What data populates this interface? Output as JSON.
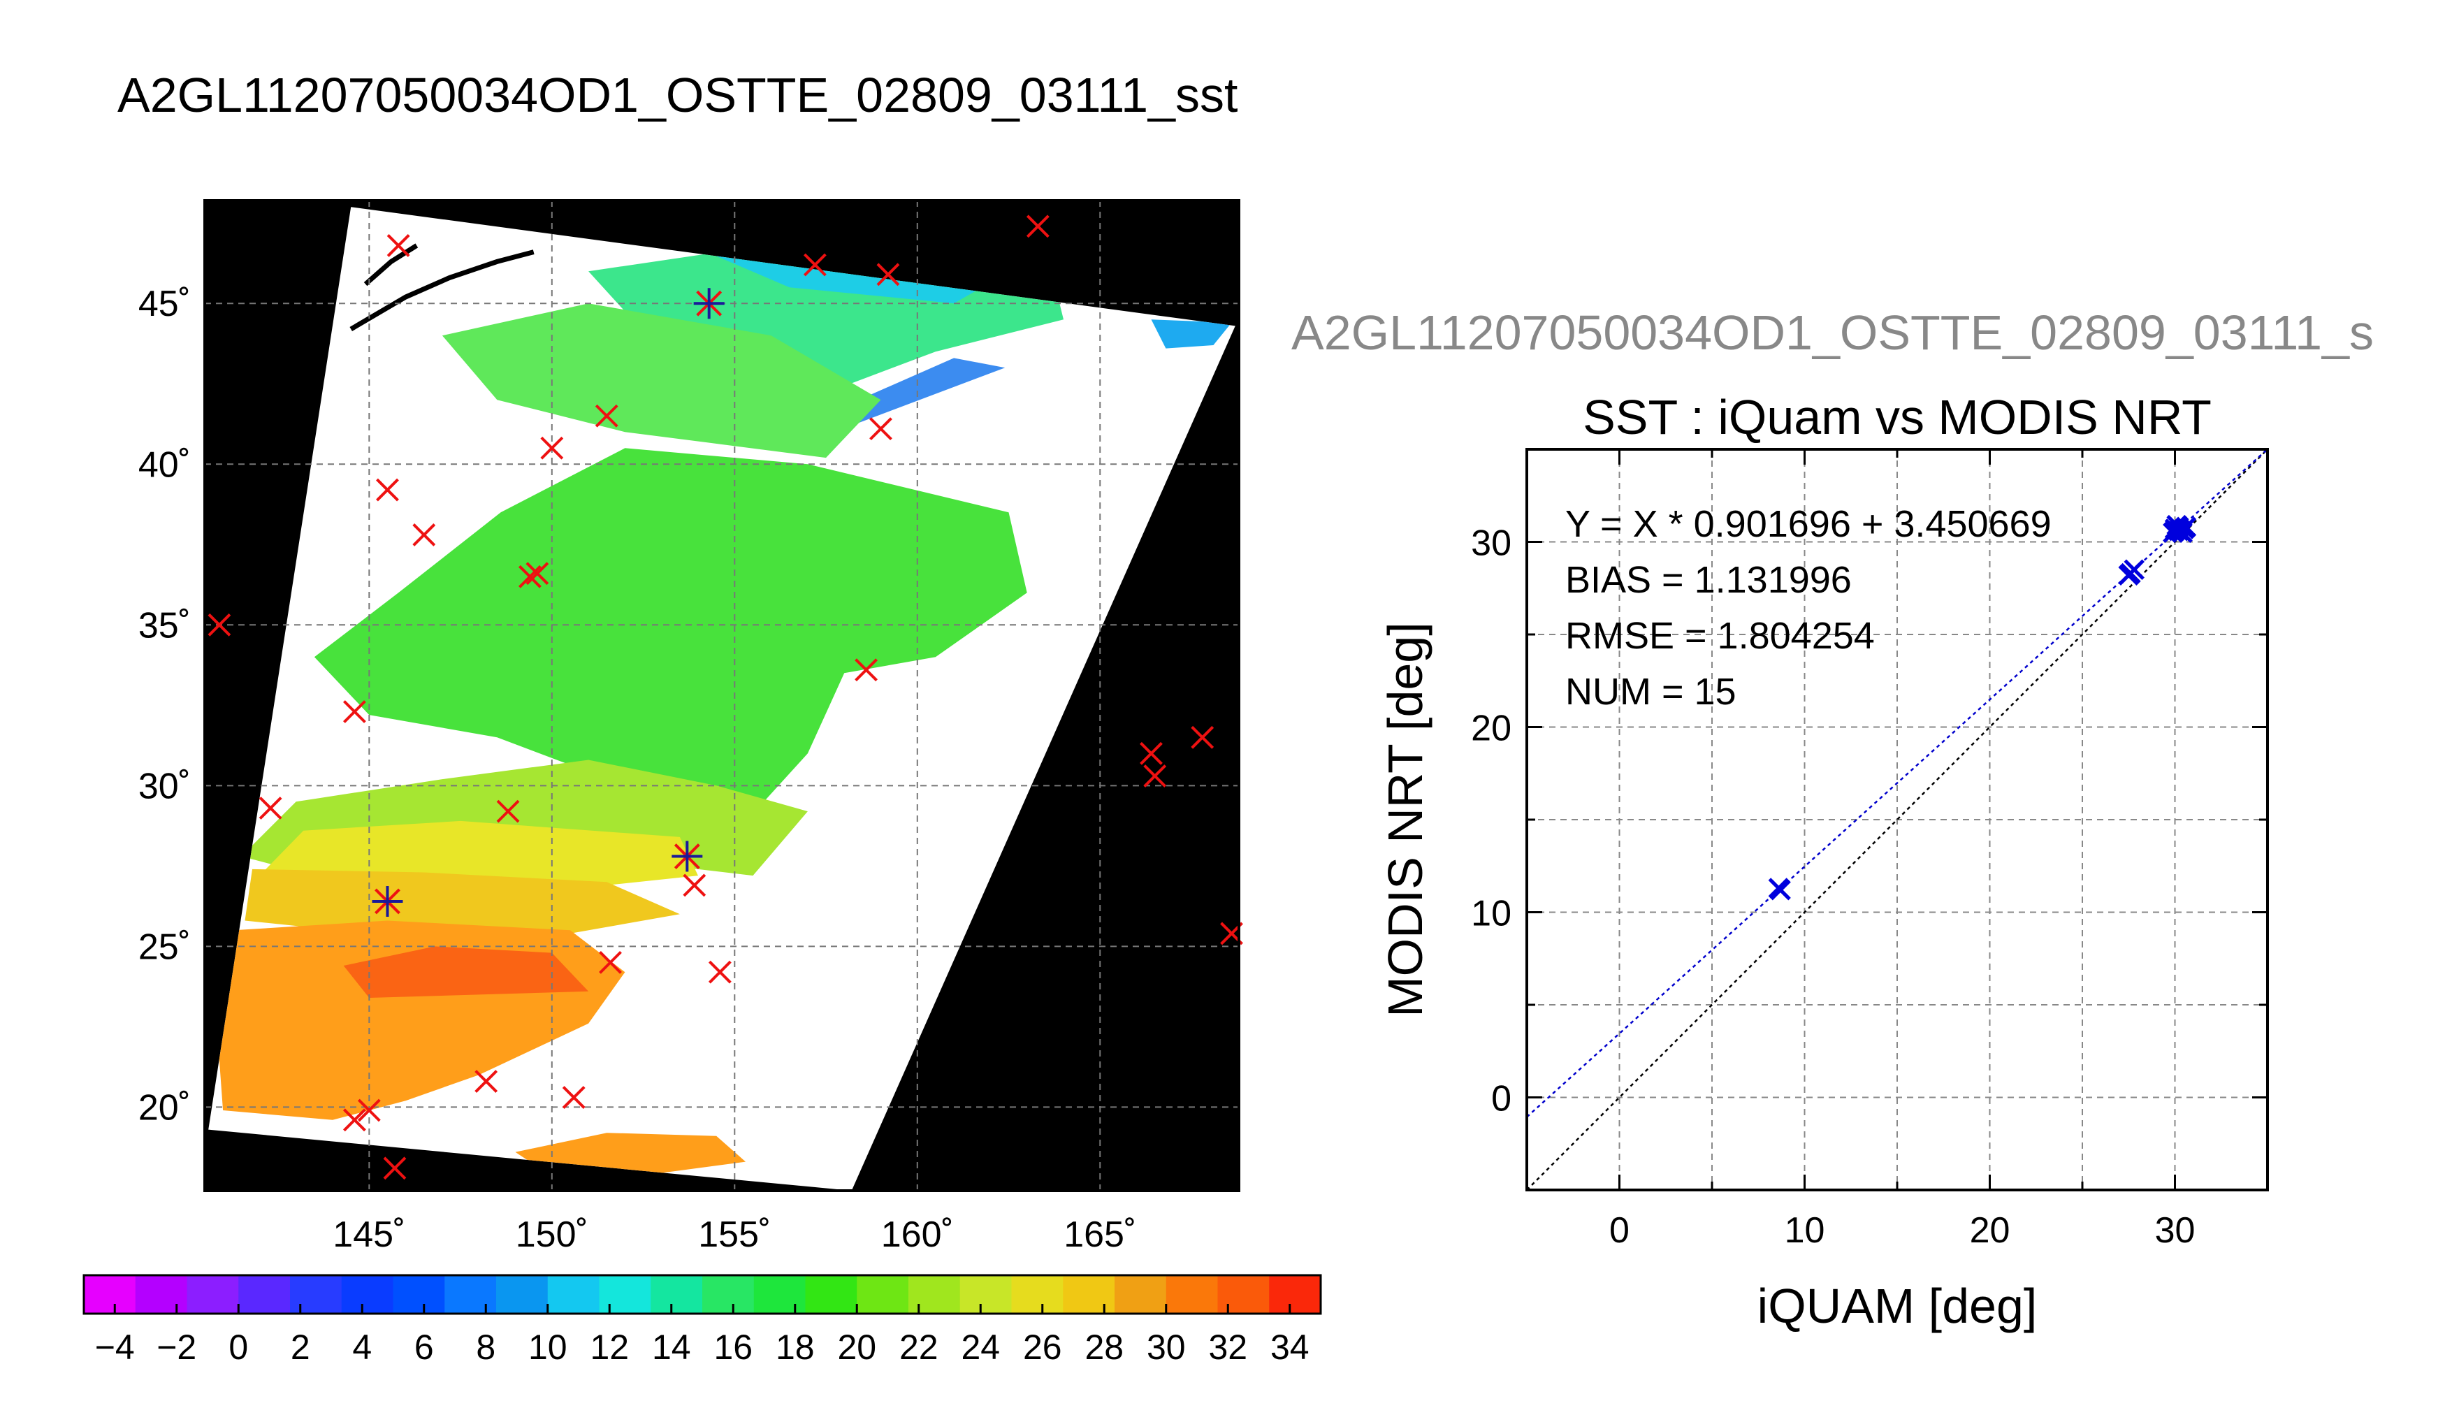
{
  "figure_title": "A2GL11207050034OD1_OSTTE_02809_03111_sst",
  "chart_data": [
    {
      "type": "map",
      "title": "A2GL11207050034OD1_OSTTE_02809_03111_sst",
      "lon_ticks": [
        145,
        150,
        155,
        160,
        165
      ],
      "lat_ticks": [
        20,
        25,
        30,
        35,
        40,
        45
      ],
      "lon_tick_labels": [
        "145˚",
        "150˚",
        "155˚",
        "160˚",
        "165˚"
      ],
      "lat_tick_labels": [
        "20˚",
        "25˚",
        "30˚",
        "35˚",
        "40˚",
        "45˚"
      ],
      "lon_range": [
        140.5,
        168.8
      ],
      "lat_range": [
        17.4,
        48.2
      ],
      "grid": true,
      "swath_corners": [
        [
          144.5,
          48.0
        ],
        [
          168.7,
          44.3
        ],
        [
          158.2,
          17.4
        ],
        [
          140.6,
          19.3
        ]
      ],
      "regions": [
        {
          "label": "green (cyan) NE",
          "color": "#3ce68c",
          "points": [
            [
              151,
              46
            ],
            [
              157,
              47
            ],
            [
              163.5,
              46.8
            ],
            [
              164,
              44.5
            ],
            [
              160.5,
              43.5
            ],
            [
              157,
              42
            ],
            [
              153,
              43.5
            ]
          ]
        },
        {
          "label": "cyan core",
          "color": "#1ecde6",
          "points": [
            [
              153,
              47.2
            ],
            [
              158,
              47.2
            ],
            [
              163,
              46.3
            ],
            [
              161,
              45
            ],
            [
              156.5,
              45.5
            ]
          ]
        },
        {
          "label": "cyan edge",
          "color": "#1eaaf0",
          "points": [
            [
              166.4,
              44.5
            ],
            [
              168.6,
              44.4
            ],
            [
              168.1,
              43.7
            ],
            [
              166.8,
              43.6
            ]
          ]
        },
        {
          "label": "blue strip",
          "color": "#3c8cf0",
          "points": [
            [
              157.6,
              41.6
            ],
            [
              161,
              43.3
            ],
            [
              162.4,
              43
            ],
            [
              158.2,
              41.2
            ]
          ]
        },
        {
          "label": "green central",
          "color": "#48e23c",
          "points": [
            [
              145.8,
              36
            ],
            [
              148.6,
              38.5
            ],
            [
              152,
              40.5
            ],
            [
              157,
              40
            ],
            [
              162.5,
              38.5
            ],
            [
              163,
              36
            ],
            [
              160.5,
              34
            ],
            [
              158,
              33.5
            ],
            [
              157,
              31
            ],
            [
              155,
              28.5
            ],
            [
              152,
              30
            ],
            [
              148.5,
              31.5
            ],
            [
              145,
              32.2
            ],
            [
              143.5,
              34
            ]
          ]
        },
        {
          "label": "green north",
          "color": "#5fe85a",
          "points": [
            [
              147,
              44
            ],
            [
              151,
              45
            ],
            [
              156,
              44
            ],
            [
              159,
              42
            ],
            [
              157.5,
              40.2
            ],
            [
              152,
              41
            ],
            [
              148.5,
              42
            ]
          ]
        },
        {
          "label": "yellow-green band",
          "color": "#a6e632",
          "points": [
            [
              143,
              29.5
            ],
            [
              147,
              30.2
            ],
            [
              151,
              30.8
            ],
            [
              154.5,
              30
            ],
            [
              157,
              29.2
            ],
            [
              155.5,
              27.2
            ],
            [
              151,
              27.8
            ],
            [
              147,
              27.6
            ],
            [
              143.5,
              27.2
            ],
            [
              141.5,
              27.8
            ]
          ]
        },
        {
          "label": "yellow",
          "color": "#e8e628",
          "points": [
            [
              143.2,
              28.6
            ],
            [
              147.5,
              28.9
            ],
            [
              153.5,
              28.4
            ],
            [
              154,
              27.2
            ],
            [
              149,
              26.6
            ],
            [
              144.5,
              26.8
            ],
            [
              142,
              27.2
            ]
          ]
        },
        {
          "label": "orange-yellow",
          "color": "#f0c81e",
          "points": [
            [
              141.8,
              27.4
            ],
            [
              146.5,
              27.3
            ],
            [
              151.5,
              27
            ],
            [
              153.5,
              26
            ],
            [
              149.5,
              25.2
            ],
            [
              145,
              25.4
            ],
            [
              141.6,
              25.8
            ]
          ]
        },
        {
          "label": "orange",
          "color": "#ff9e1a",
          "points": [
            [
              141.3,
              25.5
            ],
            [
              145.5,
              25.8
            ],
            [
              150.5,
              25.5
            ],
            [
              152,
              24.2
            ],
            [
              151,
              22.6
            ],
            [
              148,
              21
            ],
            [
              146,
              20.2
            ],
            [
              144,
              19.6
            ],
            [
              141,
              19.9
            ],
            [
              140.8,
              23
            ]
          ]
        },
        {
          "label": "dark orange",
          "color": "#fa6414",
          "points": [
            [
              144.3,
              24.4
            ],
            [
              146.8,
              25
            ],
            [
              150,
              24.8
            ],
            [
              151,
              23.6
            ],
            [
              148,
              23.5
            ],
            [
              145,
              23.4
            ]
          ]
        },
        {
          "label": "orange patch south",
          "color": "#ff9e1a",
          "points": [
            [
              149,
              18.6
            ],
            [
              151.5,
              19.2
            ],
            [
              154.5,
              19.1
            ],
            [
              155.3,
              18.3
            ],
            [
              152,
              17.8
            ],
            [
              149.8,
              18
            ]
          ]
        }
      ],
      "coastlines": [
        [
          [
            144.5,
            44.2
          ],
          [
            146,
            45.2
          ],
          [
            147.2,
            45.8
          ],
          [
            148.5,
            46.3
          ],
          [
            149.5,
            46.6
          ]
        ],
        [
          [
            144.9,
            45.6
          ],
          [
            145.6,
            46.3
          ],
          [
            146.3,
            46.8
          ]
        ]
      ],
      "buoy_markers_red": [
        [
          145.8,
          46.8
        ],
        [
          157.2,
          46.2
        ],
        [
          159.2,
          45.9
        ],
        [
          163.3,
          47.4
        ],
        [
          151.5,
          41.5
        ],
        [
          150.0,
          40.5
        ],
        [
          159.0,
          41.1
        ],
        [
          145.5,
          39.2
        ],
        [
          146.5,
          37.8
        ],
        [
          149.4,
          36.5
        ],
        [
          149.6,
          36.6
        ],
        [
          140.9,
          35.0
        ],
        [
          158.6,
          33.6
        ],
        [
          144.6,
          32.3
        ],
        [
          142.3,
          29.3
        ],
        [
          148.8,
          29.2
        ],
        [
          166.4,
          31.0
        ],
        [
          166.5,
          30.3
        ],
        [
          167.8,
          31.5
        ],
        [
          153.9,
          26.9
        ],
        [
          151.6,
          24.5
        ],
        [
          154.6,
          24.2
        ],
        [
          168.6,
          25.4
        ],
        [
          148.2,
          20.8
        ],
        [
          150.6,
          20.3
        ],
        [
          145.0,
          19.9
        ],
        [
          144.6,
          19.6
        ],
        [
          145.7,
          18.1
        ]
      ],
      "matchup_markers": [
        [
          154.3,
          45.0
        ],
        [
          145.5,
          26.4
        ],
        [
          153.7,
          27.8
        ]
      ]
    },
    {
      "type": "colorbar",
      "range": [
        -5,
        35
      ],
      "ticks": [
        -4,
        -2,
        0,
        2,
        4,
        6,
        8,
        10,
        12,
        14,
        16,
        18,
        20,
        22,
        24,
        26,
        28,
        30,
        32,
        34
      ],
      "tick_labels": [
        "−4",
        "−2",
        "0",
        "2",
        "4",
        "6",
        "8",
        "10",
        "12",
        "14",
        "16",
        "18",
        "20",
        "22",
        "24",
        "26",
        "28",
        "30",
        "32",
        "34"
      ],
      "colors": [
        "#e600ff",
        "#b400ff",
        "#8c1eff",
        "#5a28ff",
        "#283cff",
        "#0a3cff",
        "#0050ff",
        "#0a78ff",
        "#0a96f0",
        "#14c8f0",
        "#14e6dc",
        "#14e6a0",
        "#28e664",
        "#1ee63c",
        "#32e614",
        "#6ee614",
        "#a0e61e",
        "#c8e628",
        "#e6dc1e",
        "#f0c814",
        "#f0a014",
        "#fa780a",
        "#fa5a0a",
        "#fa280a"
      ]
    },
    {
      "type": "scatter",
      "figure_label": "A2GL11207050034OD1_OSTTE_02809_03111_s",
      "title": "SST : iQuam vs MODIS NRT",
      "xlabel": "iQUAM [deg]",
      "ylabel": "MODIS NRT [deg]",
      "xlim": [
        -5,
        35
      ],
      "ylim": [
        -5,
        35
      ],
      "xticks": [
        0,
        10,
        20,
        30
      ],
      "yticks": [
        0,
        10,
        20,
        30
      ],
      "minor_step": 5,
      "grid": true,
      "stats": [
        "Y = X * 0.901696 + 3.450669",
        "BIAS = 1.131996",
        "RMSE = 1.804254",
        "NUM = 15"
      ],
      "fit": {
        "slope": 0.901696,
        "intercept": 3.450669,
        "color": "#0000cc"
      },
      "identity_line_color": "#000000",
      "points": [
        {
          "x": 8.6,
          "y": 11.3
        },
        {
          "x": 8.7,
          "y": 11.2
        },
        {
          "x": 27.5,
          "y": 28.2
        },
        {
          "x": 27.8,
          "y": 28.5
        },
        {
          "x": 27.6,
          "y": 28.3
        },
        {
          "x": 30.0,
          "y": 30.6
        },
        {
          "x": 30.2,
          "y": 30.8
        },
        {
          "x": 30.5,
          "y": 30.7
        },
        {
          "x": 29.9,
          "y": 30.5
        },
        {
          "x": 30.1,
          "y": 30.9
        },
        {
          "x": 30.3,
          "y": 30.6
        },
        {
          "x": 30.6,
          "y": 30.8
        },
        {
          "x": 30.0,
          "y": 30.7
        },
        {
          "x": 30.4,
          "y": 30.5
        },
        {
          "x": 30.2,
          "y": 30.6
        }
      ],
      "point_color": "#0000dd"
    }
  ]
}
